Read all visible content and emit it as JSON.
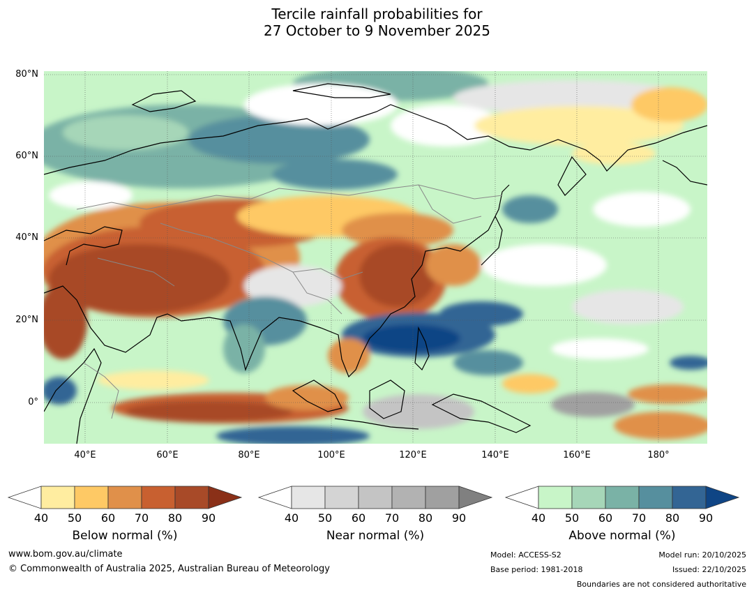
{
  "title": {
    "line1": "Tercile rainfall probabilities for",
    "line2": "27 October to 9 November 2025"
  },
  "map": {
    "lat_labels": [
      "80°N",
      "60°N",
      "40°N",
      "20°N",
      "0°"
    ],
    "lon_labels": [
      "40°E",
      "60°E",
      "80°E",
      "100°E",
      "120°E",
      "140°E",
      "160°E",
      "180°"
    ]
  },
  "colorbars": [
    {
      "label": "Below normal (%)",
      "ticks": [
        "40",
        "50",
        "60",
        "70",
        "80",
        "90"
      ],
      "colors": [
        "#ffeda0",
        "#fec965",
        "#e0904a",
        "#c86030",
        "#a84a28",
        "#8a3018"
      ]
    },
    {
      "label": "Near normal (%)",
      "ticks": [
        "40",
        "50",
        "60",
        "70",
        "80",
        "90"
      ],
      "colors": [
        "#e6e6e6",
        "#d4d4d4",
        "#c4c4c4",
        "#b2b2b2",
        "#a0a0a0",
        "#808080"
      ]
    },
    {
      "label": "Above normal (%)",
      "ticks": [
        "40",
        "50",
        "60",
        "70",
        "80",
        "90"
      ],
      "colors": [
        "#c8f5c8",
        "#a6d6b8",
        "#7ab2a6",
        "#568f9e",
        "#336594",
        "#0f4585"
      ]
    }
  ],
  "footer": {
    "website": "www.bom.gov.au/climate",
    "copyright": "© Commonwealth of Australia 2025, Australian Bureau of Meteorology",
    "model": "Model: ACCESS-S2",
    "base_period": "Base period: 1981-2018",
    "model_run": "Model run: 20/10/2025",
    "issued": "Issued: 22/10/2025",
    "disclaimer": "Boundaries are not considered authoritative"
  }
}
